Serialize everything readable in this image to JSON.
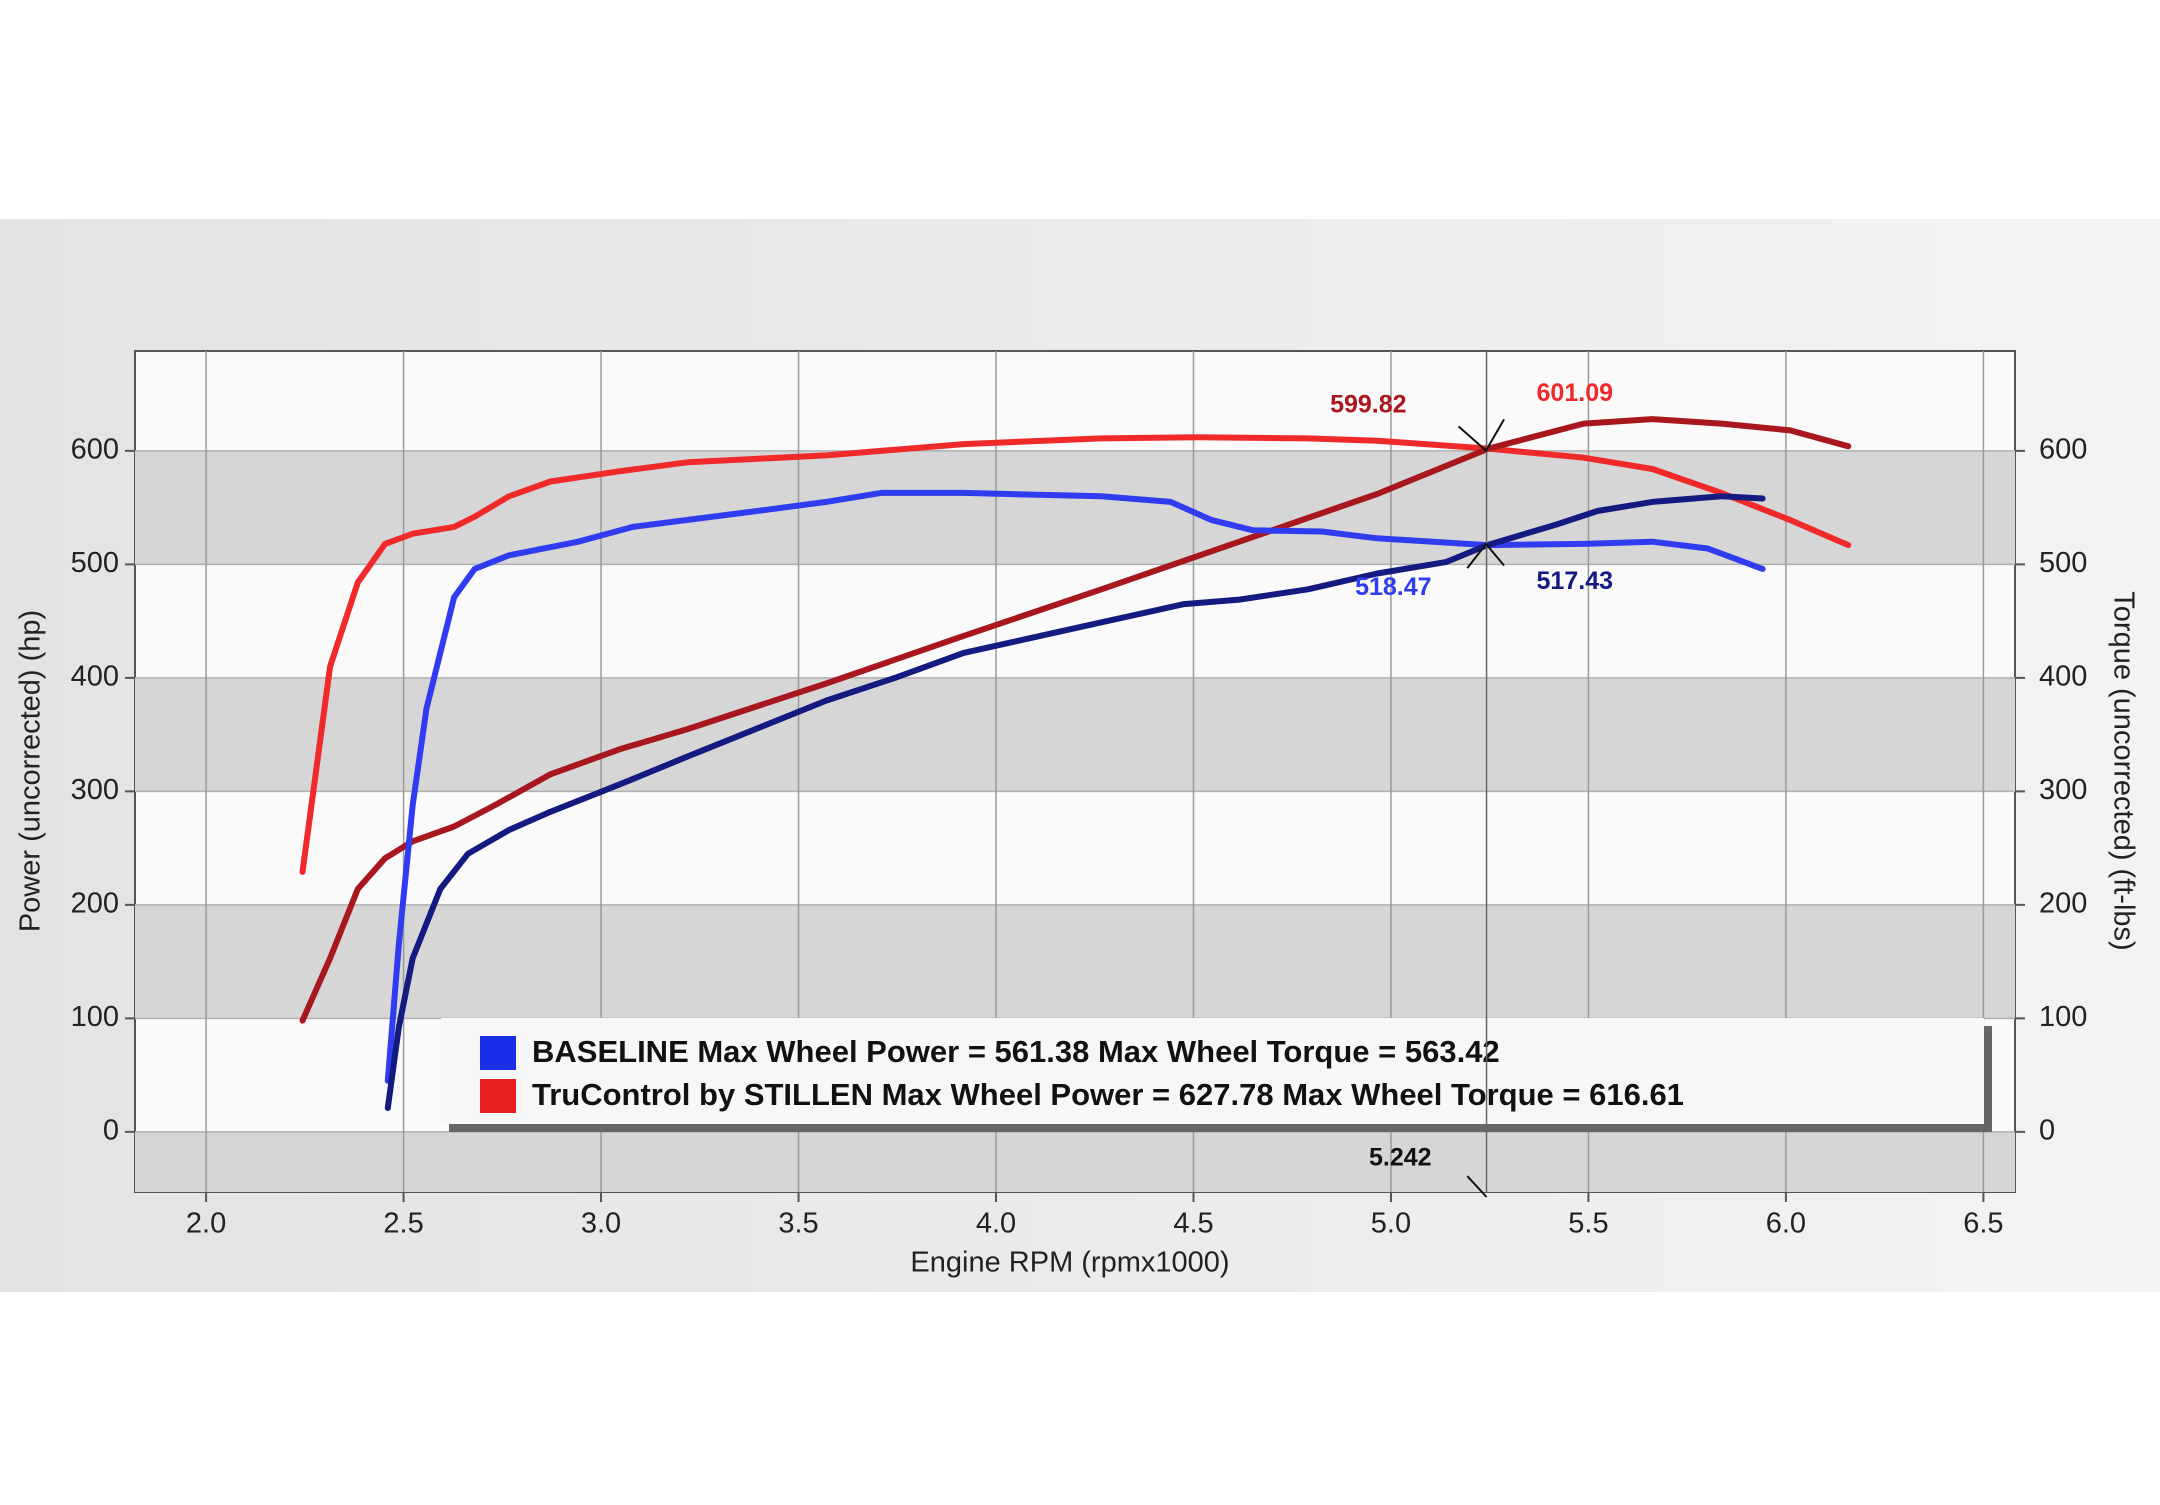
{
  "chart_data": {
    "type": "line",
    "xlabel": "Engine RPM (rpmx1000)",
    "ylabel": "Power (uncorrected) (hp)",
    "y2label": "Torque (uncorrected) (ft-lbs)",
    "xlim": [
      1.82,
      6.58
    ],
    "ylim": [
      -53,
      688
    ],
    "y2lim": [
      -53,
      688
    ],
    "xticks": [
      {
        "value": 2,
        "label": "2.0"
      },
      {
        "value": 2.5,
        "label": "2.5"
      },
      {
        "value": 3,
        "label": "3.0"
      },
      {
        "value": 3.5,
        "label": "3.5"
      },
      {
        "value": 4,
        "label": "4.0"
      },
      {
        "value": 4.5,
        "label": "4.5"
      },
      {
        "value": 5,
        "label": "5.0"
      },
      {
        "value": 5.5,
        "label": "5.5"
      },
      {
        "value": 6,
        "label": "6.0"
      },
      {
        "value": 6.5,
        "label": "6.5"
      }
    ],
    "yticks": [
      0,
      100,
      200,
      300,
      400,
      500,
      600
    ],
    "y2ticks": [
      0,
      100,
      200,
      300,
      400,
      500,
      600
    ],
    "grid": true,
    "series": [
      {
        "color": "#f02a2a",
        "axis": "y2",
        "x": [
          2.244,
          2.314,
          2.384,
          2.453,
          2.523,
          2.628,
          2.68,
          2.767,
          2.872,
          3.046,
          3.221,
          3.57,
          3.918,
          4.267,
          4.511,
          4.79,
          4.965,
          5.247,
          5.488,
          5.662,
          5.837,
          6.011,
          6.158
        ],
        "values": [
          229,
          410,
          484,
          518,
          527,
          533,
          542,
          560,
          573,
          582,
          590,
          596,
          606,
          611,
          612,
          611,
          609,
          602,
          594,
          584,
          563,
          539,
          517
        ]
      },
      {
        "color": "#a8161e",
        "x": [
          2.244,
          2.314,
          2.384,
          2.453,
          2.523,
          2.628,
          2.732,
          2.872,
          3.046,
          3.221,
          3.57,
          3.918,
          4.267,
          4.616,
          4.965,
          5.247,
          5.488,
          5.662,
          5.837,
          6.011,
          6.158
        ],
        "values": [
          98,
          153,
          214,
          241,
          256,
          269,
          288,
          315,
          337,
          355,
          395,
          437,
          478,
          520,
          562,
          602,
          624,
          628,
          624,
          618,
          604
        ]
      },
      {
        "color": "#2f3cf0",
        "axis": "y2",
        "x": [
          2.46,
          2.488,
          2.523,
          2.558,
          2.593,
          2.628,
          2.68,
          2.767,
          2.942,
          3.081,
          3.395,
          3.57,
          3.709,
          3.918,
          4.267,
          4.442,
          4.546,
          4.651,
          4.825,
          4.965,
          5.244,
          5.488,
          5.662,
          5.802,
          5.941
        ],
        "values": [
          45,
          165,
          288,
          373,
          422,
          471,
          496,
          508,
          520,
          533,
          547,
          555,
          563,
          563,
          560,
          555,
          539,
          530,
          529,
          523,
          517,
          518,
          520,
          514,
          496
        ]
      },
      {
        "color": "#131a80",
        "x": [
          2.46,
          2.488,
          2.523,
          2.593,
          2.663,
          2.767,
          2.872,
          3.046,
          3.221,
          3.57,
          3.744,
          3.918,
          4.267,
          4.476,
          4.616,
          4.79,
          4.965,
          5.139,
          5.244,
          5.418,
          5.523,
          5.662,
          5.837,
          5.941
        ],
        "values": [
          21,
          92,
          153,
          214,
          245,
          266,
          282,
          306,
          331,
          380,
          400,
          422,
          449,
          465,
          469,
          478,
          492,
          502,
          517,
          535,
          547,
          555,
          560,
          558
        ]
      }
    ],
    "legend": [
      {
        "label": "BASELINE Max Wheel Power = 561.38 Max Wheel Torque = 563.42",
        "color": "#1a2ee8"
      },
      {
        "label": "TruControl by STILLEN Max Wheel Power = 627.78 Max Wheel Torque = 616.61",
        "color": "#e82020"
      }
    ],
    "annotations": [
      {
        "label": "599.82",
        "x": 5.242,
        "y": 599.82,
        "color": "#a8161e"
      },
      {
        "label": "601.09",
        "x": 5.242,
        "y": 601.09,
        "color": "#f02a2a"
      },
      {
        "label": "518.47",
        "x": 5.242,
        "y": 518.47,
        "color": "#2f3cf0"
      },
      {
        "label": "517.43",
        "x": 5.242,
        "y": 517.43,
        "color": "#131a80"
      },
      {
        "label": "5.242",
        "x": 5.242,
        "color": "#111111"
      }
    ]
  }
}
